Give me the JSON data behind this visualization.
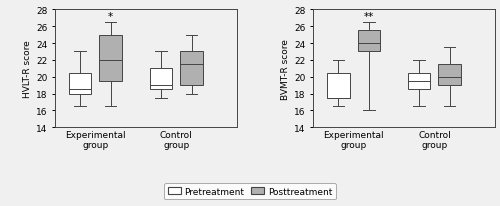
{
  "left_plot": {
    "ylabel": "HVLT-R score",
    "ylim": [
      14,
      28
    ],
    "yticks": [
      14,
      16,
      18,
      20,
      22,
      24,
      26,
      28
    ],
    "groups": [
      "Experimental\ngroup",
      "Control\ngroup"
    ],
    "pretreatment": [
      {
        "whislo": 16.5,
        "q1": 18.0,
        "med": 18.5,
        "q3": 20.5,
        "whishi": 23.0
      },
      {
        "whislo": 17.5,
        "q1": 18.5,
        "med": 19.0,
        "q3": 21.0,
        "whishi": 23.0
      }
    ],
    "posttreatment": [
      {
        "whislo": 16.5,
        "q1": 19.5,
        "med": 22.0,
        "q3": 25.0,
        "whishi": 26.5
      },
      {
        "whislo": 18.0,
        "q1": 19.0,
        "med": 21.5,
        "q3": 23.0,
        "whishi": 25.0
      }
    ],
    "sig_label_post_exp": "*",
    "sig_label_post_ctrl": ""
  },
  "right_plot": {
    "ylabel": "BVMT-R score",
    "ylim": [
      14,
      28
    ],
    "yticks": [
      14,
      16,
      18,
      20,
      22,
      24,
      26,
      28
    ],
    "groups": [
      "Experimental\ngroup",
      "Control\ngroup"
    ],
    "pretreatment": [
      {
        "whislo": 16.5,
        "q1": 17.5,
        "med": 17.5,
        "q3": 20.5,
        "whishi": 22.0
      },
      {
        "whislo": 16.5,
        "q1": 18.5,
        "med": 19.5,
        "q3": 20.5,
        "whishi": 22.0
      }
    ],
    "posttreatment": [
      {
        "whislo": 16.0,
        "q1": 23.0,
        "med": 24.0,
        "q3": 25.5,
        "whishi": 26.5
      },
      {
        "whislo": 16.5,
        "q1": 19.0,
        "med": 20.0,
        "q3": 21.5,
        "whishi": 23.5
      }
    ],
    "sig_label_post_exp": "**",
    "sig_label_post_ctrl": ""
  },
  "pre_color": "#ffffff",
  "post_color": "#b0b0b0",
  "pre_edge_color": "#444444",
  "post_edge_color": "#444444",
  "box_width": 0.28,
  "legend_labels": [
    "Pretreatment",
    "Posttreatment"
  ],
  "fontsize": 6.5,
  "sig_fontsize": 7.5,
  "fig_bg": "#f0f0f0"
}
